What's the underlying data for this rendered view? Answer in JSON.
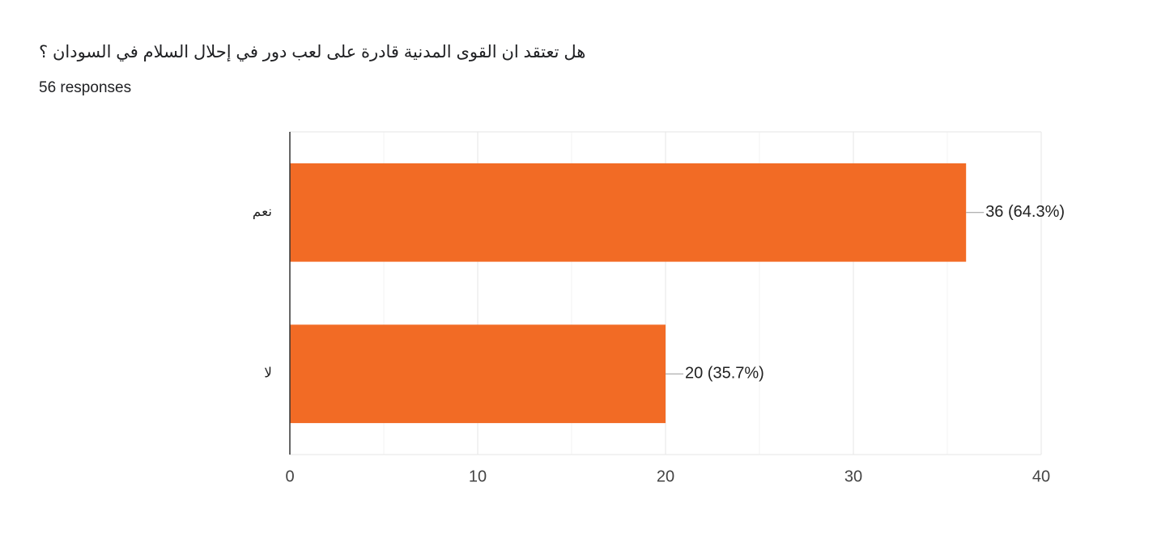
{
  "chart_data": {
    "type": "bar",
    "orientation": "horizontal",
    "title": "هل تعتقد ان القوى المدنية قادرة على لعب دور في إحلال السلام في السودان ؟",
    "subtitle": "56 responses",
    "categories": [
      "نعم",
      "لا"
    ],
    "values": [
      36,
      20
    ],
    "value_labels": [
      "36 (64.3%)",
      "20 (35.7%)"
    ],
    "color": "#f26b25",
    "xlim": [
      0,
      40
    ],
    "xticks": [
      0,
      10,
      20,
      30,
      40
    ],
    "minor_xticks": [
      5,
      15,
      25,
      35
    ],
    "grid": true
  }
}
